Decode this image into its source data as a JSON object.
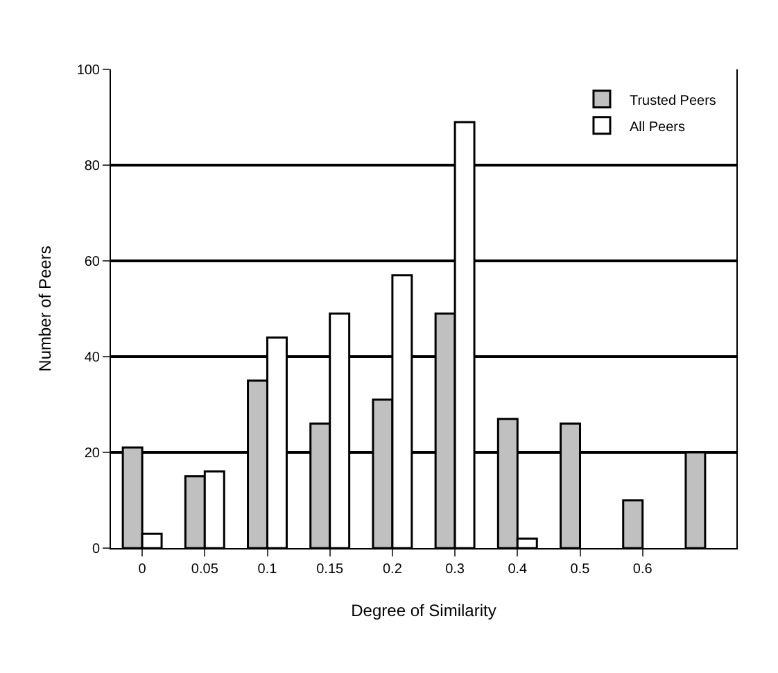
{
  "chart_data": {
    "type": "bar",
    "xlabel": "Degree of Similarity",
    "ylabel": "Number of Peers",
    "categories": [
      "0",
      "0.05",
      "0.1",
      "0.15",
      "0.2",
      "0.3",
      "0.4",
      "0.5",
      "0.6",
      null
    ],
    "series": [
      {
        "name": "Trusted Peers",
        "color": "#c0c0c0",
        "values": [
          21,
          15,
          35,
          26,
          31,
          49,
          27,
          26,
          10,
          20
        ]
      },
      {
        "name": "All Peers",
        "color": "#ffffff",
        "values": [
          3,
          16,
          44,
          49,
          57,
          89,
          2,
          null,
          null,
          null
        ]
      }
    ],
    "ylim": [
      0,
      100
    ],
    "yticks": [
      0,
      20,
      40,
      60,
      80,
      100
    ],
    "grid": "y",
    "legend": "top right"
  }
}
